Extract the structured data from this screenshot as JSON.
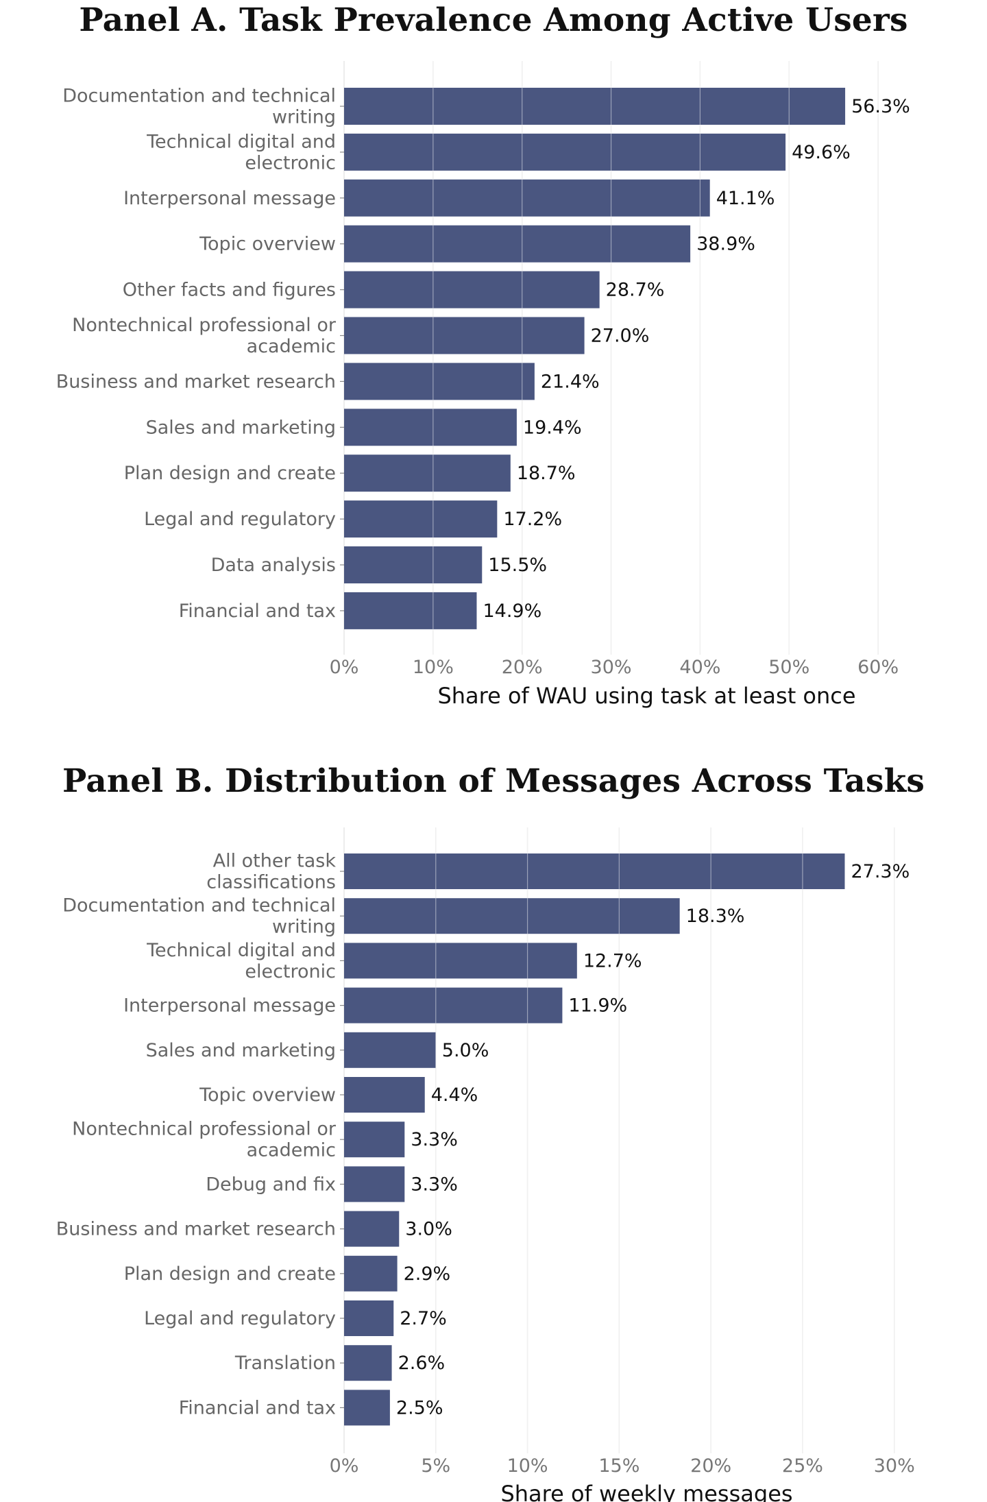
{
  "chart_data": [
    {
      "type": "bar",
      "orientation": "horizontal",
      "title": "Panel A. Task Prevalence Among Active Users",
      "xlabel": "Share of WAU using task at least once",
      "ylabel": "",
      "xlim": [
        0,
        68
      ],
      "ticks": [
        0,
        10,
        20,
        30,
        40,
        50,
        60
      ],
      "tick_labels": [
        "0%",
        "10%",
        "20%",
        "30%",
        "40%",
        "50%",
        "60%"
      ],
      "grid": true,
      "bar_color": "#4a5680",
      "categories": [
        [
          "Documentation and technical",
          "writing"
        ],
        [
          "Technical digital and",
          "electronic"
        ],
        [
          "Interpersonal message"
        ],
        [
          "Topic overview"
        ],
        [
          "Other facts and figures"
        ],
        [
          "Nontechnical professional or",
          "academic"
        ],
        [
          "Business and market research"
        ],
        [
          "Sales and marketing"
        ],
        [
          "Plan design and create"
        ],
        [
          "Legal and regulatory"
        ],
        [
          "Data analysis"
        ],
        [
          "Financial and tax"
        ]
      ],
      "values": [
        56.3,
        49.6,
        41.1,
        38.9,
        28.7,
        27.0,
        21.4,
        19.4,
        18.7,
        17.2,
        15.5,
        14.9
      ],
      "value_labels": [
        "56.3%",
        "49.6%",
        "41.1%",
        "38.9%",
        "28.7%",
        "27.0%",
        "21.4%",
        "19.4%",
        "18.7%",
        "17.2%",
        "15.5%",
        "14.9%"
      ]
    },
    {
      "type": "bar",
      "orientation": "horizontal",
      "title": "Panel B. Distribution of Messages Across Tasks",
      "xlabel": "Share of weekly messages",
      "ylabel": "",
      "xlim": [
        0,
        33
      ],
      "ticks": [
        0,
        5,
        10,
        15,
        20,
        25,
        30
      ],
      "tick_labels": [
        "0%",
        "5%",
        "10%",
        "15%",
        "20%",
        "25%",
        "30%"
      ],
      "grid": true,
      "bar_color": "#4a5680",
      "categories": [
        [
          "All other task",
          "classifications"
        ],
        [
          "Documentation and technical",
          "writing"
        ],
        [
          "Technical digital and",
          "electronic"
        ],
        [
          "Interpersonal message"
        ],
        [
          "Sales and marketing"
        ],
        [
          "Topic overview"
        ],
        [
          "Nontechnical professional or",
          "academic"
        ],
        [
          "Debug and fix"
        ],
        [
          "Business and market research"
        ],
        [
          "Plan design and create"
        ],
        [
          "Legal and regulatory"
        ],
        [
          "Translation"
        ],
        [
          "Financial and tax"
        ]
      ],
      "values": [
        27.3,
        18.3,
        12.7,
        11.9,
        5.0,
        4.4,
        3.3,
        3.3,
        3.0,
        2.9,
        2.7,
        2.6,
        2.5
      ],
      "value_labels": [
        "27.3%",
        "18.3%",
        "12.7%",
        "11.9%",
        "5.0%",
        "4.4%",
        "3.3%",
        "3.3%",
        "3.0%",
        "2.9%",
        "2.7%",
        "2.6%",
        "2.5%"
      ]
    }
  ]
}
